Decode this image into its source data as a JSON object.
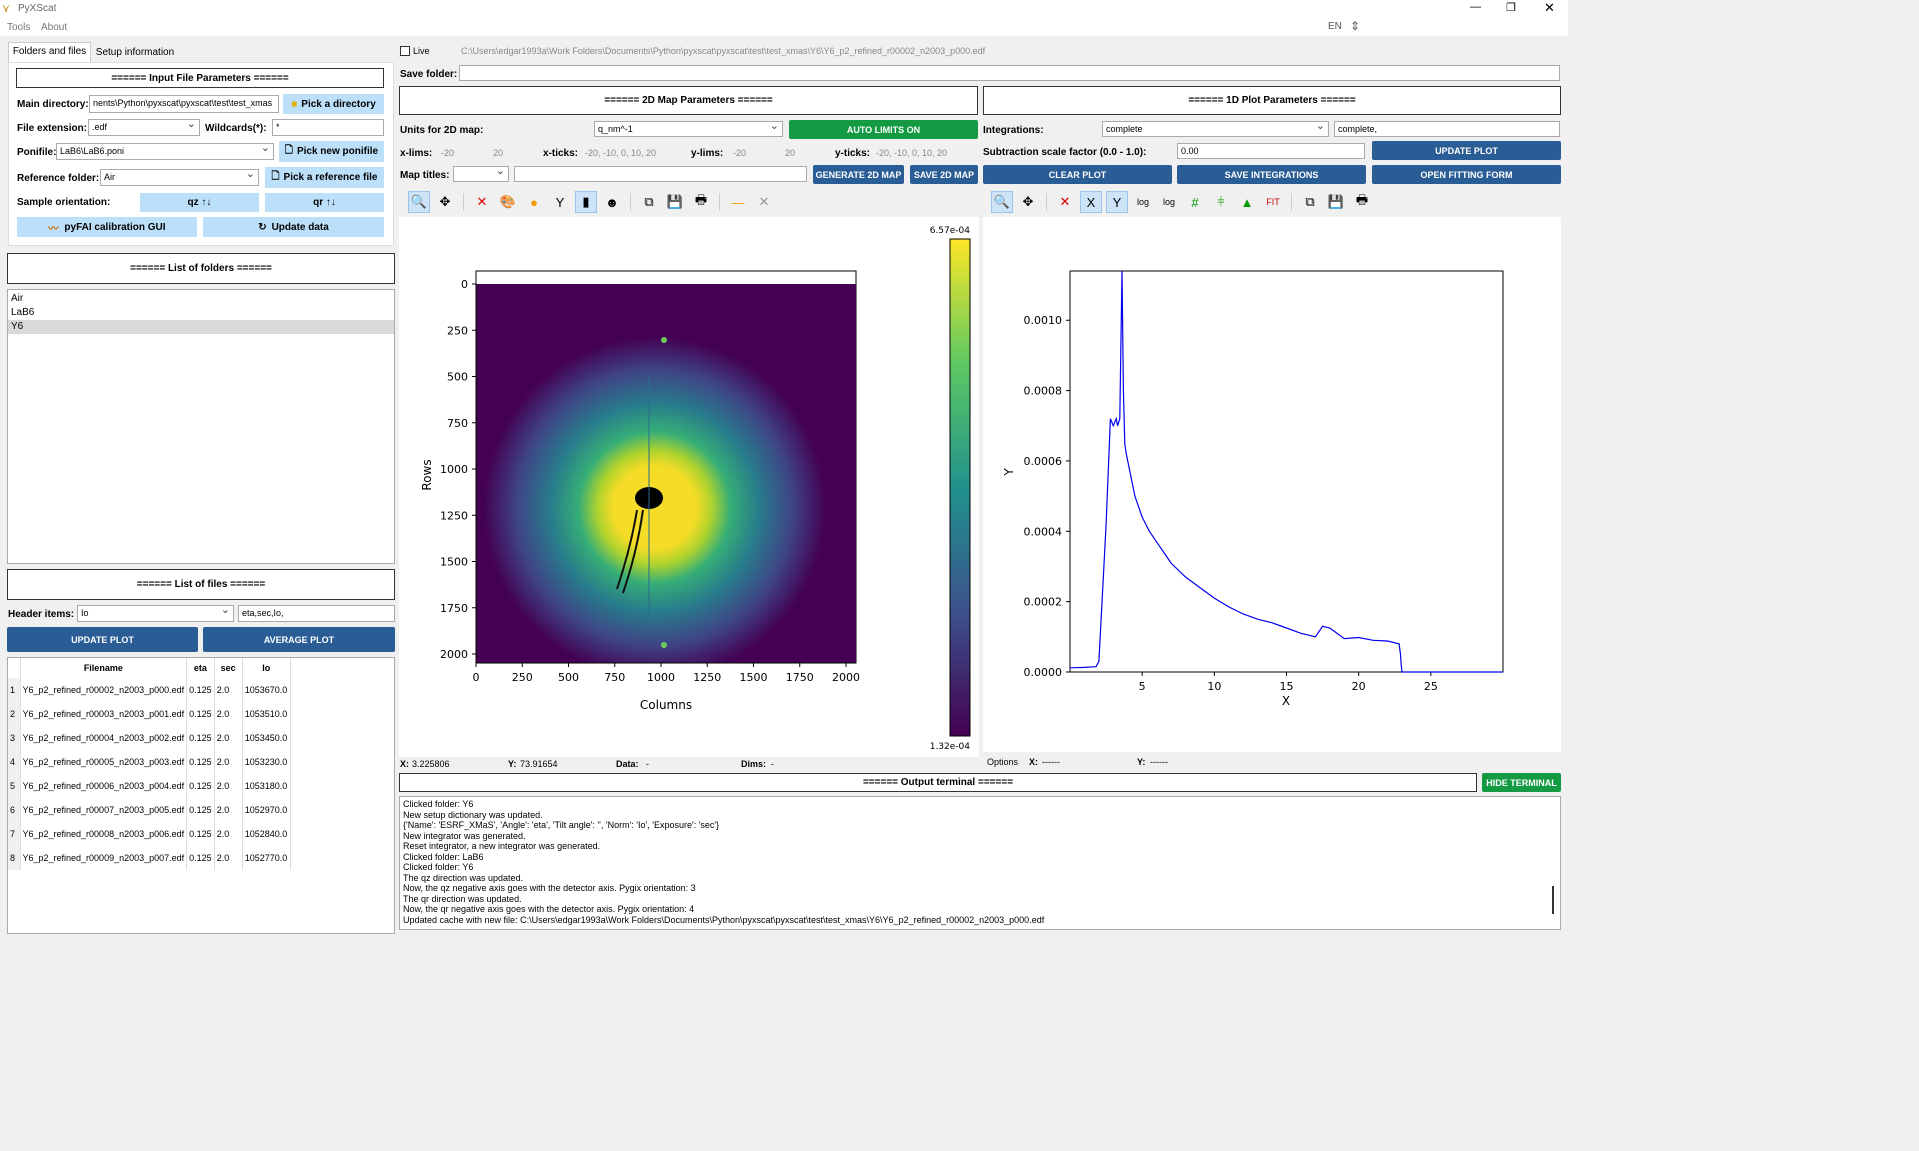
{
  "window": {
    "title": "PyXScat",
    "menu": [
      "Tools",
      "About"
    ],
    "lang": "EN"
  },
  "tabs": [
    "Folders and files",
    "Setup information"
  ],
  "input_params": {
    "header": "====== Input File Parameters ======",
    "main_dir_label": "Main directory:",
    "main_dir_value": "nents\\Python\\pyxscat\\pyxscat\\test\\test_xmas",
    "pick_dir": "Pick a directory",
    "ext_label": "File extension:",
    "ext_value": ".edf",
    "wild_label": "Wildcards(*):",
    "wild_value": "*",
    "poni_label": "Ponifile:",
    "poni_value": "LaB6\\LaB6.poni",
    "pick_poni": "Pick new ponifile",
    "ref_label": "Reference folder:",
    "ref_value": "Air",
    "pick_ref": "Pick a reference file",
    "orient_label": "Sample orientation:",
    "qz": "qz ↑↓",
    "qr": "qr ↑↓",
    "pyfai": "pyFAI calibration GUI",
    "update_data": "Update data"
  },
  "folders": {
    "header": "====== List of folders ======",
    "items": [
      "Air",
      "LaB6",
      "Y6"
    ]
  },
  "files": {
    "header": "====== List of files ======",
    "header_items_label": "Header items:",
    "header_items_value": "Io",
    "header_items_text": "eta,sec,Io,",
    "update_plot": "UPDATE PLOT",
    "average_plot": "AVERAGE PLOT",
    "columns": [
      "Filename",
      "eta",
      "sec",
      "Io"
    ],
    "rows": [
      [
        "1",
        "Y6_p2_refined_r00002_n2003_p000.edf",
        "0.125",
        "2.0",
        "1053670.0"
      ],
      [
        "2",
        "Y6_p2_refined_r00003_n2003_p001.edf",
        "0.125",
        "2.0",
        "1053510.0"
      ],
      [
        "3",
        "Y6_p2_refined_r00004_n2003_p002.edf",
        "0.125",
        "2.0",
        "1053450.0"
      ],
      [
        "4",
        "Y6_p2_refined_r00005_n2003_p003.edf",
        "0.125",
        "2.0",
        "1053230.0"
      ],
      [
        "5",
        "Y6_p2_refined_r00006_n2003_p004.edf",
        "0.125",
        "2.0",
        "1053180.0"
      ],
      [
        "6",
        "Y6_p2_refined_r00007_n2003_p005.edf",
        "0.125",
        "2.0",
        "1052970.0"
      ],
      [
        "7",
        "Y6_p2_refined_r00008_n2003_p006.edf",
        "0.125",
        "2.0",
        "1052840.0"
      ],
      [
        "8",
        "Y6_p2_refined_r00009_n2003_p007.edf",
        "0.125",
        "2.0",
        "1052770.0"
      ]
    ]
  },
  "live": {
    "label": "Live",
    "path": "C:\\Users\\edgar1993a\\Work Folders\\Documents\\Python\\pyxscat\\pyxscat\\test\\test_xmas\\Y6\\Y6_p2_refined_r00002_n2003_p000.edf"
  },
  "save_folder_label": "Save folder:",
  "map2d": {
    "header": "====== 2D Map Parameters ======",
    "units_label": "Units for 2D map:",
    "units_value": "q_nm^-1",
    "auto": "AUTO LIMITS ON",
    "xlims_label": "x-lims:",
    "xlim_a": "-20",
    "xlim_b": "20",
    "xticks_label": "x-ticks:",
    "xticks_value": "-20, -10, 0, 10, 20",
    "ylims_label": "y-lims:",
    "ylim_a": "-20",
    "ylim_b": "20",
    "yticks_label": "y-ticks:",
    "yticks_value": "-20, -10, 0, 10, 20",
    "titles_label": "Map titles:",
    "generate": "GENERATE 2D MAP",
    "save": "SAVE 2D MAP",
    "xlabel": "Columns",
    "ylabel": "Rows",
    "xticks": [
      "0",
      "250",
      "500",
      "750",
      "1000",
      "1250",
      "1500",
      "1750",
      "2000"
    ],
    "yticks": [
      "0",
      "250",
      "500",
      "750",
      "1000",
      "1250",
      "1500",
      "1750",
      "2000"
    ],
    "cbar_max": "6.57e-04",
    "cbar_min": "1.32e-04",
    "status": {
      "x_label": "X:",
      "x_value": "3.225806",
      "y_label": "Y:",
      "y_value": "73.91654",
      "data_label": "Data:",
      "data_value": "-",
      "dims_label": "Dims:",
      "dims_value": "-"
    }
  },
  "plot1d": {
    "header": "====== 1D Plot Parameters ======",
    "integrations_label": "Integrations:",
    "integrations_value": "complete",
    "integrations_text": "complete,",
    "sub_label": "Subtraction scale factor (0.0 - 1.0):",
    "sub_value": "0.00",
    "update": "UPDATE PLOT",
    "clear": "CLEAR PLOT",
    "save": "SAVE INTEGRATIONS",
    "fit": "OPEN FITTING FORM",
    "status": {
      "options": "Options",
      "x_label": "X:",
      "x_value": "------",
      "y_label": "Y:",
      "y_value": "------"
    }
  },
  "chart_data": {
    "type": "line",
    "xlabel": "X",
    "ylabel": "Y",
    "xlim": [
      0,
      30
    ],
    "ylim": [
      0,
      0.00114
    ],
    "xticks": [
      5,
      10,
      15,
      20,
      25
    ],
    "yticks": [
      0.0,
      0.0002,
      0.0004,
      0.0006,
      0.0008,
      0.001
    ],
    "ytick_labels": [
      "0.0000",
      "0.0002",
      "0.0004",
      "0.0006",
      "0.0008",
      "0.0010"
    ],
    "color": "#0000ee",
    "series": [
      {
        "x": [
          0,
          1,
          1.8,
          2.0,
          2.5,
          2.8,
          3.0,
          3.2,
          3.3,
          3.45,
          3.6,
          3.7,
          3.8,
          3.9,
          4.0,
          4.2,
          4.5,
          5.0,
          5.5,
          6.0,
          6.5,
          7.0,
          8.0,
          9.0,
          10.0,
          11.0,
          12.0,
          13.0,
          14.0,
          15.0,
          16.0,
          17.0,
          17.5,
          18.0,
          19.0,
          20.0,
          21.0,
          22.0,
          22.8,
          22.9,
          22.95,
          23.0,
          25,
          30
        ],
        "y": [
          1.2e-05,
          1.3e-05,
          1.5e-05,
          3e-05,
          0.00042,
          0.00072,
          0.0007,
          0.00072,
          0.0007,
          0.00072,
          0.00114,
          0.0008,
          0.00065,
          0.00062,
          0.0006,
          0.00056,
          0.0005,
          0.00044,
          0.0004,
          0.00037,
          0.00034,
          0.00031,
          0.00027,
          0.00024,
          0.00021,
          0.000185,
          0.000165,
          0.00015,
          0.00014,
          0.000125,
          0.00011,
          0.0001,
          0.00013,
          0.000125,
          9.5e-05,
          9.8e-05,
          9e-05,
          8.8e-05,
          8e-05,
          5e-05,
          2e-05,
          0.0,
          0.0,
          0.0
        ]
      }
    ]
  },
  "terminal": {
    "header": "====== Output terminal ======",
    "hide": "HIDE TERMINAL",
    "lines": [
      "Clicked folder: Y6",
      "New setup dictionary was updated.",
      "{'Name': 'ESRF_XMaS', 'Angle': 'eta', 'Tilt angle': '', 'Norm': 'Io', 'Exposure': 'sec'}",
      "New integrator was generated.",
      "Reset integrator, a new integrator was generated.",
      "Clicked folder: LaB6",
      "Clicked folder: Y6",
      "The qz direction was updated.",
      "Now, the qz negative axis goes with the detector axis. Pygix orientation: 3",
      "The qr direction was updated.",
      "Now, the qr negative axis goes with the detector axis. Pygix orientation: 4",
      "Updated cache with new file: C:\\Users\\edgar1993a\\Work Folders\\Documents\\Python\\pyxscat\\pyxscat\\test\\test_xmas\\Y6\\Y6_p2_refined_r00002_n2003_p000.edf"
    ]
  }
}
